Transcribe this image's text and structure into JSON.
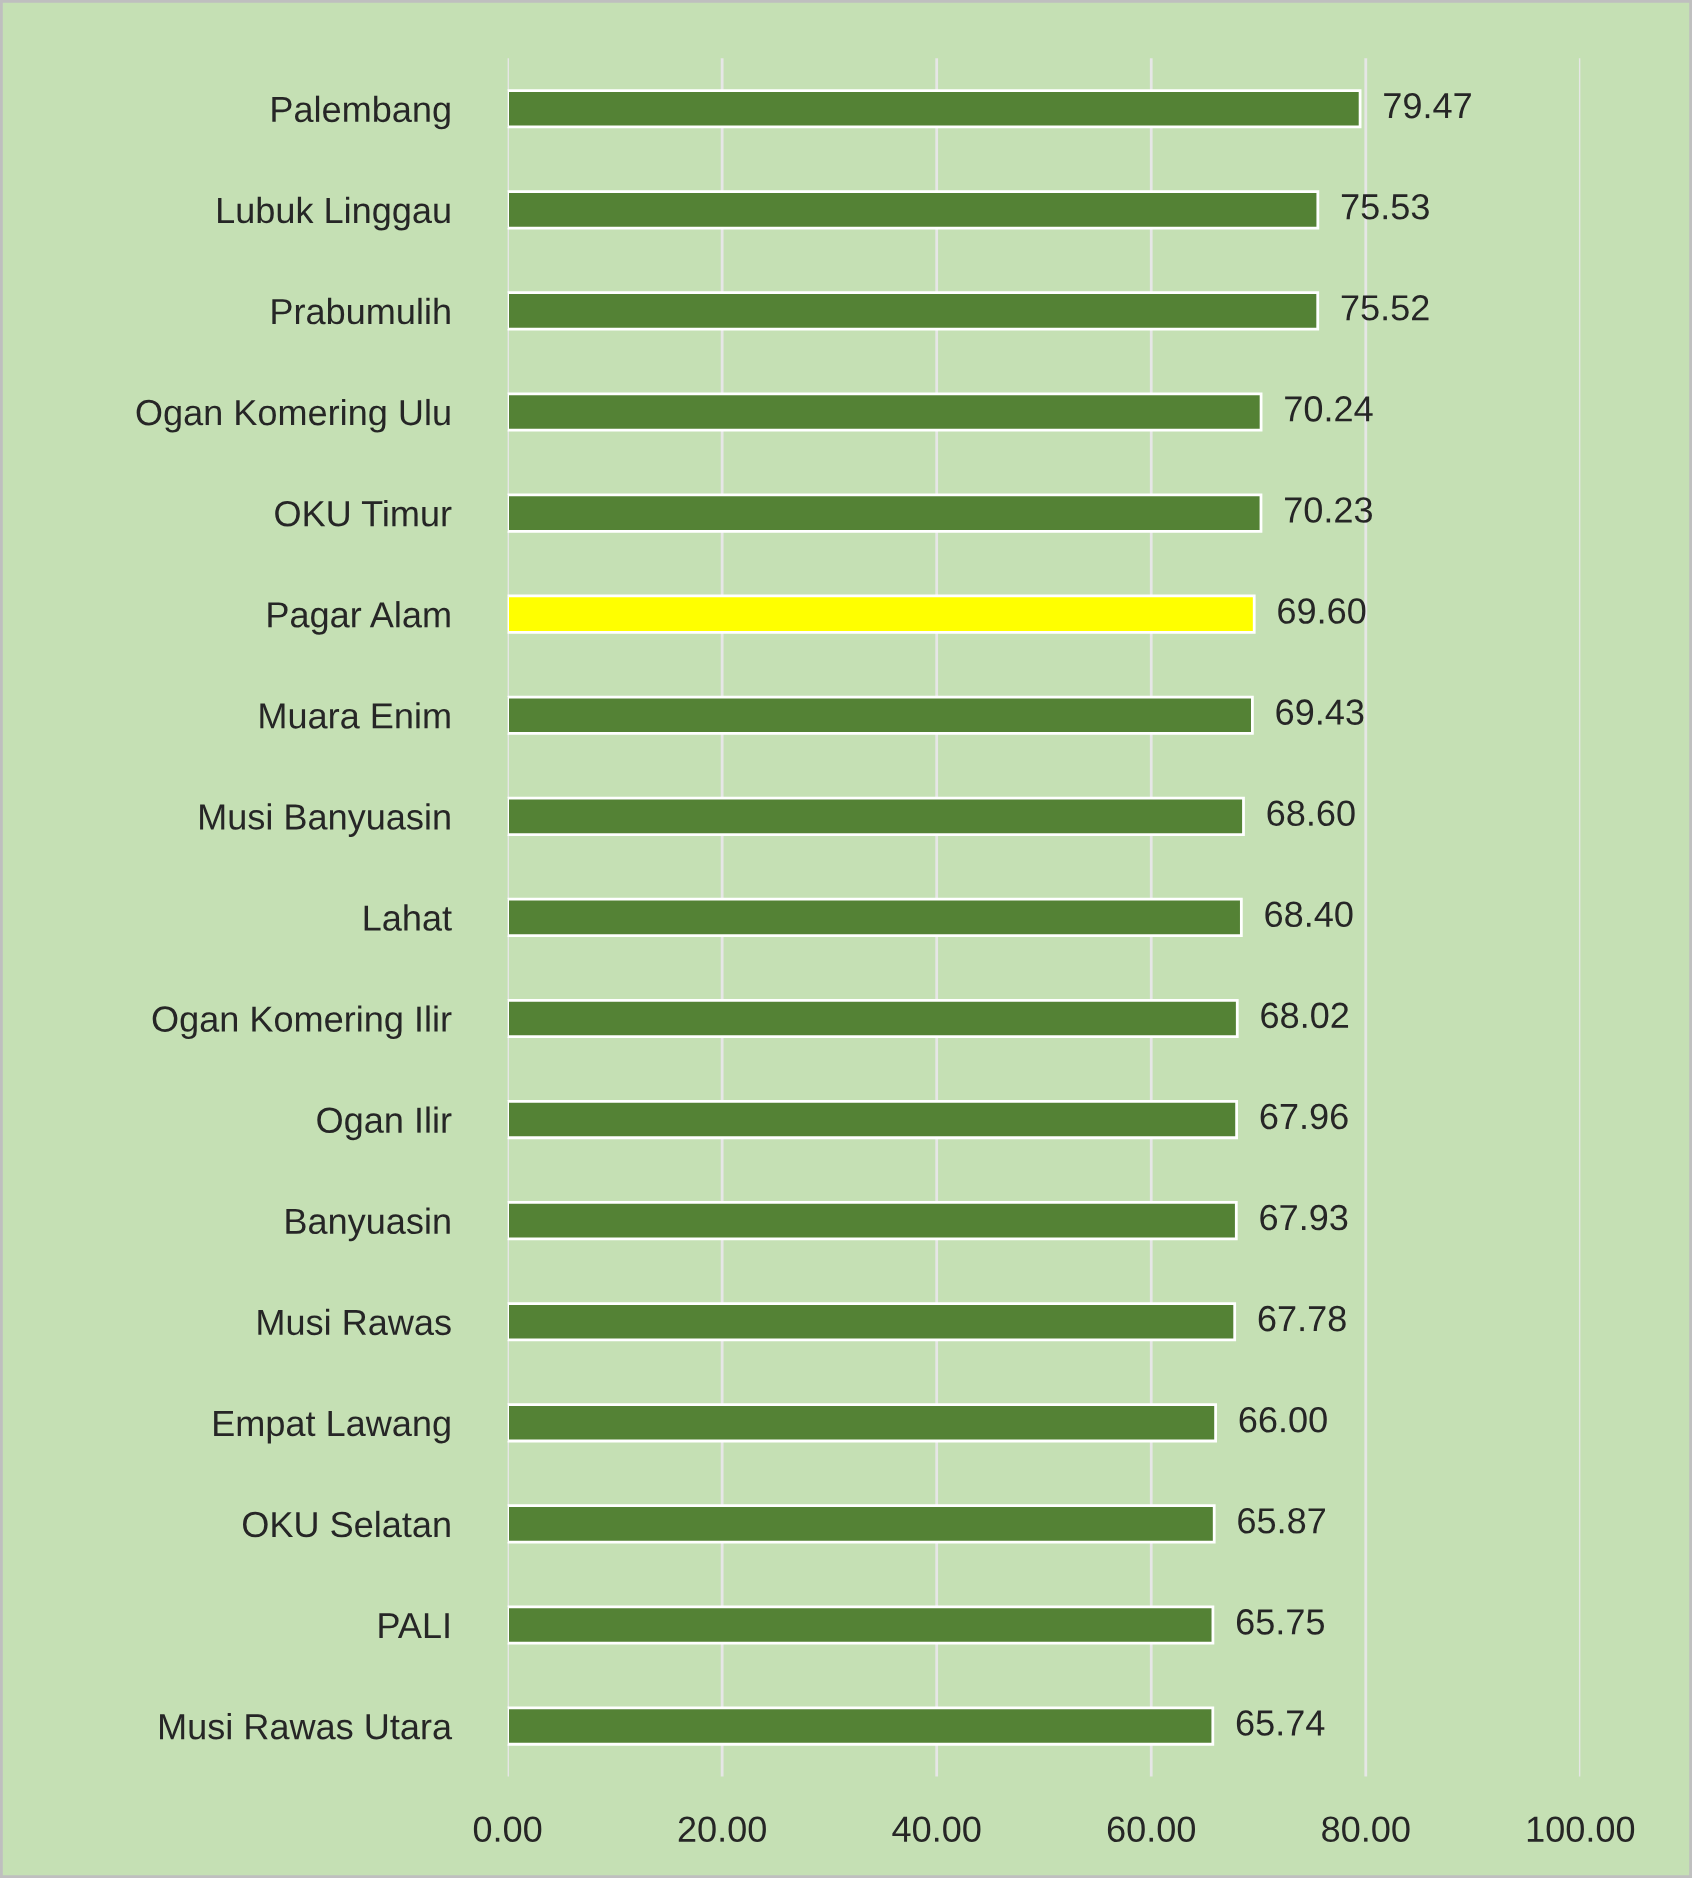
{
  "chart_data": {
    "type": "bar",
    "orientation": "horizontal",
    "categories": [
      "Palembang",
      "Lubuk Linggau",
      "Prabumulih",
      "Ogan Komering Ulu",
      "OKU Timur",
      "Pagar Alam",
      "Muara Enim",
      "Musi Banyuasin",
      "Lahat",
      "Ogan Komering Ilir",
      "Ogan Ilir",
      "Banyuasin",
      "Musi Rawas",
      "Empat Lawang",
      "OKU Selatan",
      "PALI",
      "Musi Rawas Utara"
    ],
    "values": [
      79.47,
      75.53,
      75.52,
      70.24,
      70.23,
      69.6,
      69.43,
      68.6,
      68.4,
      68.02,
      67.96,
      67.93,
      67.78,
      66.0,
      65.87,
      65.75,
      65.74
    ],
    "value_labels": [
      "79.47",
      "75.53",
      "75.52",
      "70.24",
      "70.23",
      "69.60",
      "69.43",
      "68.60",
      "68.40",
      "68.02",
      "67.96",
      "67.93",
      "67.78",
      "66.00",
      "65.87",
      "65.75",
      "65.74"
    ],
    "colors": [
      "#548235",
      "#548235",
      "#548235",
      "#548235",
      "#548235",
      "#ffff00",
      "#548235",
      "#548235",
      "#548235",
      "#548235",
      "#548235",
      "#548235",
      "#548235",
      "#548235",
      "#548235",
      "#548235",
      "#548235"
    ],
    "xlim": [
      0,
      100
    ],
    "xticks": [
      {
        "value": 0,
        "label": "0.00"
      },
      {
        "value": 20,
        "label": "20.00"
      },
      {
        "value": 40,
        "label": "40.00"
      },
      {
        "value": 60,
        "label": "60.00"
      },
      {
        "value": 80,
        "label": "80.00"
      },
      {
        "value": 100,
        "label": "100.00"
      }
    ],
    "grid": "x",
    "legend": false
  }
}
